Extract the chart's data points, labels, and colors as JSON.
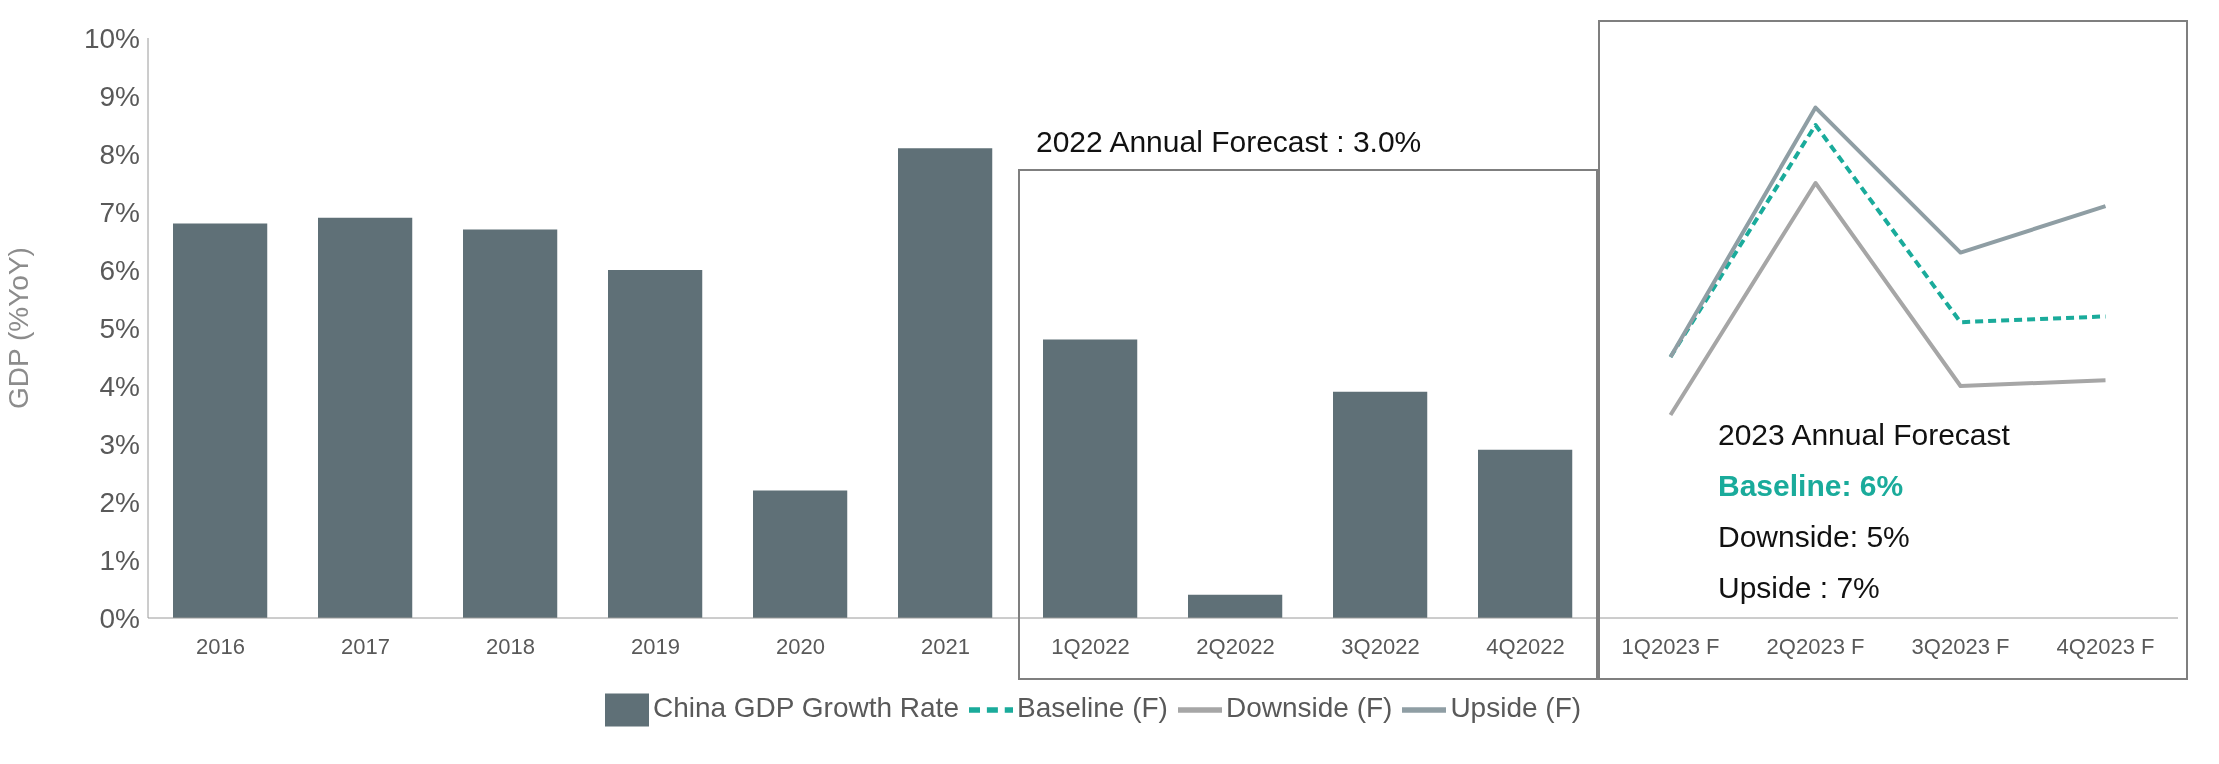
{
  "chart_data": {
    "type": "bar",
    "ylabel": "GDP (%YoY)",
    "categories": [
      "2016",
      "2017",
      "2018",
      "2019",
      "2020",
      "2021",
      "1Q2022",
      "2Q2022",
      "3Q2022",
      "4Q2022",
      "1Q2023 F",
      "2Q2023 F",
      "3Q2023 F",
      "4Q2023 F"
    ],
    "series": [
      {
        "name": "China GDP Growth Rate",
        "color": "#5f7077",
        "values": [
          6.8,
          6.9,
          6.7,
          6.0,
          2.2,
          8.1,
          4.8,
          0.4,
          3.9,
          2.9,
          null,
          null,
          null,
          null
        ]
      },
      {
        "name": "Baseline (F)",
        "type": "line",
        "color": "#1aab9b",
        "line_style": "dashed",
        "values": [
          null,
          null,
          null,
          null,
          null,
          null,
          null,
          null,
          null,
          null,
          4.5,
          8.5,
          5.1,
          5.2
        ]
      },
      {
        "name": "Downside (F)",
        "type": "line",
        "color": "#a6a6a6",
        "line_style": "solid",
        "values": [
          null,
          null,
          null,
          null,
          null,
          null,
          null,
          null,
          null,
          null,
          3.5,
          7.5,
          4.0,
          4.1
        ]
      },
      {
        "name": "Upside (F)",
        "type": "line",
        "color": "#8f9ea4",
        "line_style": "solid",
        "values": [
          null,
          null,
          null,
          null,
          null,
          null,
          null,
          null,
          null,
          null,
          4.5,
          8.8,
          6.3,
          7.1
        ]
      }
    ],
    "ylim": [
      0,
      10
    ],
    "yticks": [
      {
        "value": 0,
        "label": "0%"
      },
      {
        "value": 1,
        "label": "1%"
      },
      {
        "value": 2,
        "label": "2%"
      },
      {
        "value": 3,
        "label": "3%"
      },
      {
        "value": 4,
        "label": "4%"
      },
      {
        "value": 5,
        "label": "5%"
      },
      {
        "value": 6,
        "label": "6%"
      },
      {
        "value": 7,
        "label": "7%"
      },
      {
        "value": 8,
        "label": "8%"
      },
      {
        "value": 9,
        "label": "9%"
      },
      {
        "value": 10,
        "label": "10%"
      }
    ],
    "grid": false,
    "legend": "bottom",
    "marker": "none",
    "annotations": [
      "2022 Annual Forecast : 3.0%",
      "2023 Annual Forecast",
      "Baseline: 6%",
      "Downside: 5%",
      "Upside : 7%"
    ]
  }
}
